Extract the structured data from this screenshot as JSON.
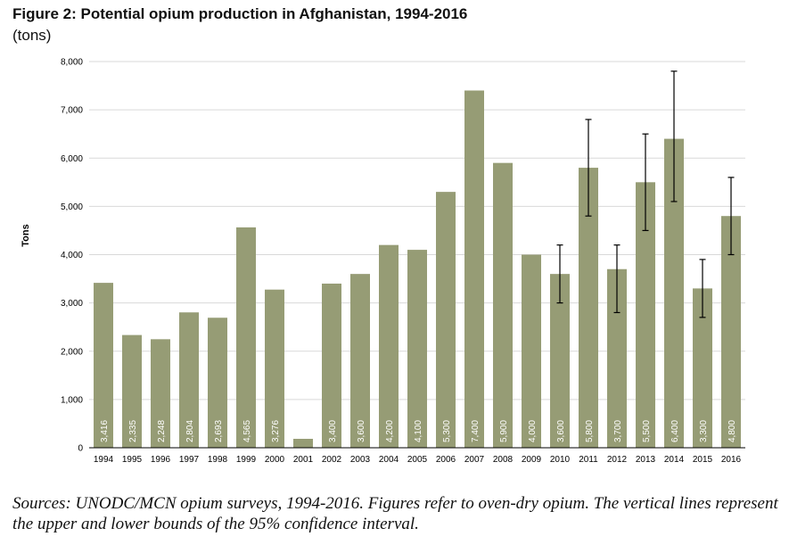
{
  "figure": {
    "title": "Figure 2: Potential opium production in Afghanistan, 1994-2016",
    "subtitle": "(tons)",
    "caption": "Sources: UNODC/MCN opium surveys, 1994-2016. Figures refer to oven-dry opium. The vertical lines represent the upper and lower bounds of the 95% confidence interval."
  },
  "colors": {
    "bar": "#969c75",
    "label": "#ffffff",
    "grid": "#d9d9d9",
    "axis": "#000000",
    "errorbar": "#000000"
  },
  "chart_data": {
    "type": "bar",
    "title": "Figure 2: Potential opium production in Afghanistan, 1994-2016",
    "subtitle": "(tons)",
    "xlabel": "",
    "ylabel": "Tons",
    "ylim": [
      0,
      8000
    ],
    "yticks": [
      0,
      1000,
      2000,
      3000,
      4000,
      5000,
      6000,
      7000,
      8000
    ],
    "ytick_labels": [
      "0",
      "1,000",
      "2,000",
      "3,000",
      "4,000",
      "5,000",
      "6,000",
      "7,000",
      "8,000"
    ],
    "grid": true,
    "categories": [
      "1994",
      "1995",
      "1996",
      "1997",
      "1998",
      "1999",
      "2000",
      "2001",
      "2002",
      "2003",
      "2004",
      "2005",
      "2006",
      "2007",
      "2008",
      "2009",
      "2010",
      "2011",
      "2012",
      "2013",
      "2014",
      "2015",
      "2016"
    ],
    "values": [
      3416,
      2335,
      2248,
      2804,
      2693,
      4565,
      3276,
      185,
      3400,
      3600,
      4200,
      4100,
      5300,
      7400,
      5900,
      4000,
      3600,
      5800,
      3700,
      5500,
      6400,
      3300,
      4800
    ],
    "data_labels": [
      "3,416",
      "2,335",
      "2,248",
      "2,804",
      "2,693",
      "4,565",
      "3,276",
      "",
      "3,400",
      "3,600",
      "4,200",
      "4,100",
      "5,300",
      "7,400",
      "5,900",
      "4,000",
      "3,600",
      "5,800",
      "3,700",
      "5,500",
      "6,400",
      "3,300",
      "4,800"
    ],
    "confidence_interval": {
      "2010": [
        3000,
        4200
      ],
      "2011": [
        4800,
        6800
      ],
      "2012": [
        2800,
        4200
      ],
      "2013": [
        4500,
        6500
      ],
      "2014": [
        5100,
        7800
      ],
      "2015": [
        2700,
        3900
      ],
      "2016": [
        4000,
        5600
      ]
    }
  }
}
